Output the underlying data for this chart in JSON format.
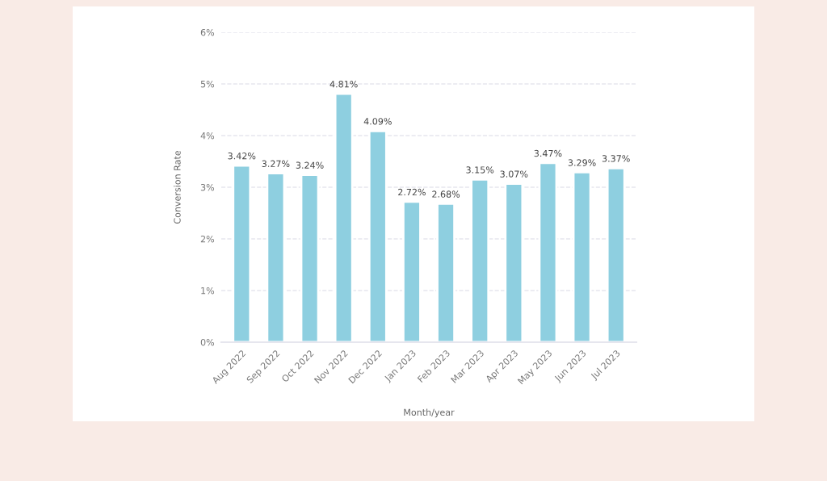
{
  "chart_data": {
    "type": "bar",
    "xlabel": "Month/year",
    "ylabel": "Conversion Rate",
    "categories": [
      "Aug 2022",
      "Sep 2022",
      "Oct 2022",
      "Nov 2022",
      "Dec 2022",
      "Jan 2023",
      "Feb 2023",
      "Mar 2023",
      "Apr 2023",
      "May 2023",
      "Jun 2023",
      "Jul 2023"
    ],
    "values": [
      3.42,
      3.27,
      3.24,
      4.81,
      4.09,
      2.72,
      2.68,
      3.15,
      3.07,
      3.47,
      3.29,
      3.37
    ],
    "value_labels": [
      "3.42%",
      "3.27%",
      "3.24%",
      "4.81%",
      "4.09%",
      "2.72%",
      "2.68%",
      "3.15%",
      "3.07%",
      "3.47%",
      "3.29%",
      "3.37%"
    ],
    "color": "#8ecfe0",
    "ylim": [
      0,
      6
    ],
    "yticks": [
      {
        "value": 0,
        "label": "0%"
      },
      {
        "value": 1,
        "label": "1%"
      },
      {
        "value": 2,
        "label": "2%"
      },
      {
        "value": 3,
        "label": "3%"
      },
      {
        "value": 4,
        "label": "4%"
      },
      {
        "value": 5,
        "label": "5%"
      },
      {
        "value": 6,
        "label": "6%"
      }
    ],
    "grid": "y"
  }
}
